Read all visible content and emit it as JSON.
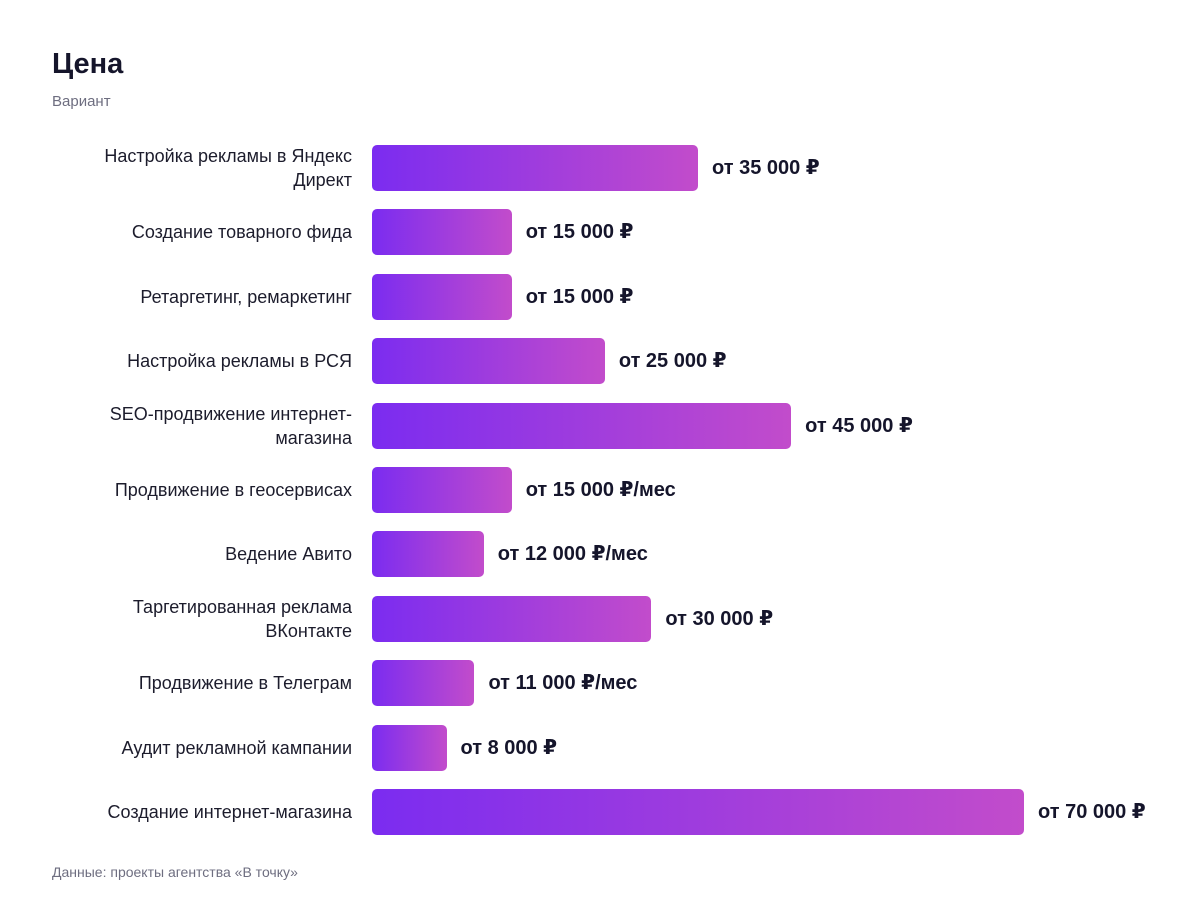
{
  "chart_data": {
    "type": "bar",
    "orientation": "horizontal",
    "title": "Цена",
    "subtitle": "Вариант",
    "source": "Данные: проекты агентства «В точку»",
    "categories": [
      "Настройка рекламы в Яндекс Директ",
      "Создание товарного фида",
      "Ретаргетинг, ремаркетинг",
      "Настройка рекламы в РСЯ",
      "SEO-продвижение интернет-магазина",
      "Продвижение в геосервисах",
      "Ведение Авито",
      "Таргетированная реклама ВКонтакте",
      "Продвижение в Телеграм",
      "Аудит рекламной кампании",
      "Создание интернет-магазина"
    ],
    "values": [
      35000,
      15000,
      15000,
      25000,
      45000,
      15000,
      12000,
      30000,
      11000,
      8000,
      70000
    ],
    "value_labels": [
      "от 35 000 ₽",
      "от 15 000 ₽",
      "от 15 000 ₽",
      "от 25 000 ₽",
      "от 45 000 ₽",
      "от 15 000 ₽/мес",
      "от 12 000 ₽/мес",
      "от 30 000 ₽",
      "от 11 000 ₽/мес",
      "от 8 000 ₽",
      "от 70 000 ₽"
    ],
    "xlim": [
      0,
      70000
    ],
    "grid": false,
    "legend": "none",
    "colors": {
      "bar_start": "#7b2cf0",
      "bar_end": "#c24ccb"
    }
  }
}
